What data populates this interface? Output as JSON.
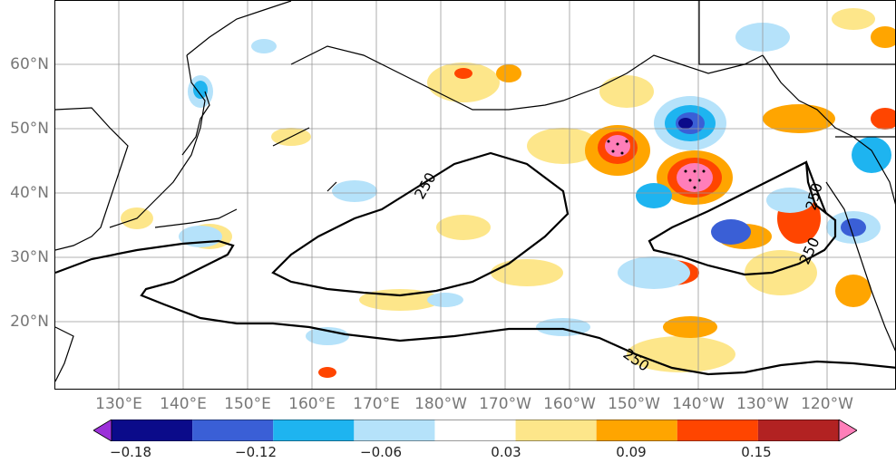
{
  "map": {
    "lat_labels": [
      "60°N",
      "50°N",
      "40°N",
      "30°N",
      "20°N"
    ],
    "lon_labels": [
      "130°E",
      "140°E",
      "150°E",
      "160°E",
      "170°E",
      "180°W",
      "170°W",
      "160°W",
      "150°W",
      "140°W",
      "130°W",
      "120°W"
    ],
    "contour_label": "250",
    "land_color": "#ffffff",
    "coast_color": "#000000",
    "grid_color": "#999999"
  },
  "colorbar": {
    "labels": [
      "−0.18",
      "−0.12",
      "−0.06",
      "0.03",
      "0.09",
      "0.15"
    ],
    "colors": [
      "#9b30d9",
      "#0b0b8a",
      "#3a5fd6",
      "#1eb4f0",
      "#b5e2fa",
      "#ffffff",
      "#fde68a",
      "#ffa500",
      "#ff4500",
      "#b22222",
      "#ff7eb9"
    ]
  }
}
